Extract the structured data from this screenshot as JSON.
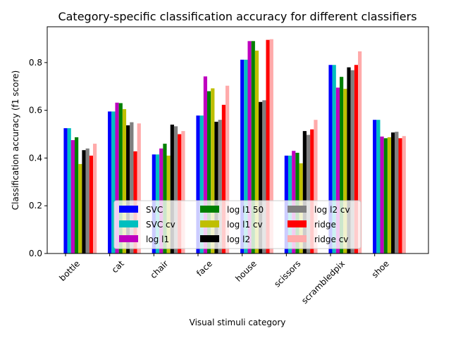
{
  "chart_data": {
    "type": "bar",
    "title": "Category-specific classification accuracy for different classifiers",
    "xlabel": "Visual stimuli category",
    "ylabel": "Classification accuracy (f1 score)",
    "ylim": [
      0,
      0.95
    ],
    "yticks": [
      "0.0",
      "0.2",
      "0.4",
      "0.6",
      "0.8"
    ],
    "grid": false,
    "legend_position": "lower center",
    "categories": [
      "bottle",
      "cat",
      "chair",
      "face",
      "house",
      "scissors",
      "scrambledpix",
      "shoe"
    ],
    "series": [
      {
        "name": "SVC",
        "color": "#0000ff",
        "values": [
          0.525,
          0.595,
          0.415,
          0.578,
          0.812,
          0.41,
          0.79,
          0.56
        ]
      },
      {
        "name": "SVC cv",
        "color": "#00bfbf",
        "values": [
          0.525,
          0.595,
          0.415,
          0.578,
          0.812,
          0.41,
          0.79,
          0.56
        ]
      },
      {
        "name": "log l1",
        "color": "#bf00bf",
        "values": [
          0.475,
          0.632,
          0.44,
          0.742,
          0.89,
          0.43,
          0.695,
          0.49
        ]
      },
      {
        "name": "log l1 50",
        "color": "#008000",
        "values": [
          0.487,
          0.63,
          0.46,
          0.68,
          0.89,
          0.422,
          0.74,
          0.483
        ]
      },
      {
        "name": "log l1 cv",
        "color": "#bfbf00",
        "values": [
          0.375,
          0.605,
          0.41,
          0.692,
          0.85,
          0.378,
          0.69,
          0.487
        ]
      },
      {
        "name": "log l2",
        "color": "#000000",
        "values": [
          0.433,
          0.537,
          0.54,
          0.552,
          0.635,
          0.513,
          0.78,
          0.507
        ]
      },
      {
        "name": "log l2 cv",
        "color": "#808080",
        "values": [
          0.44,
          0.55,
          0.533,
          0.56,
          0.642,
          0.497,
          0.768,
          0.51
        ]
      },
      {
        "name": "ridge",
        "color": "#ff0000",
        "values": [
          0.41,
          0.428,
          0.5,
          0.623,
          0.895,
          0.52,
          0.79,
          0.483
        ]
      },
      {
        "name": "ridge cv",
        "color": "#ffaaaa",
        "values": [
          0.46,
          0.545,
          0.513,
          0.703,
          0.898,
          0.56,
          0.847,
          0.492
        ]
      }
    ]
  }
}
